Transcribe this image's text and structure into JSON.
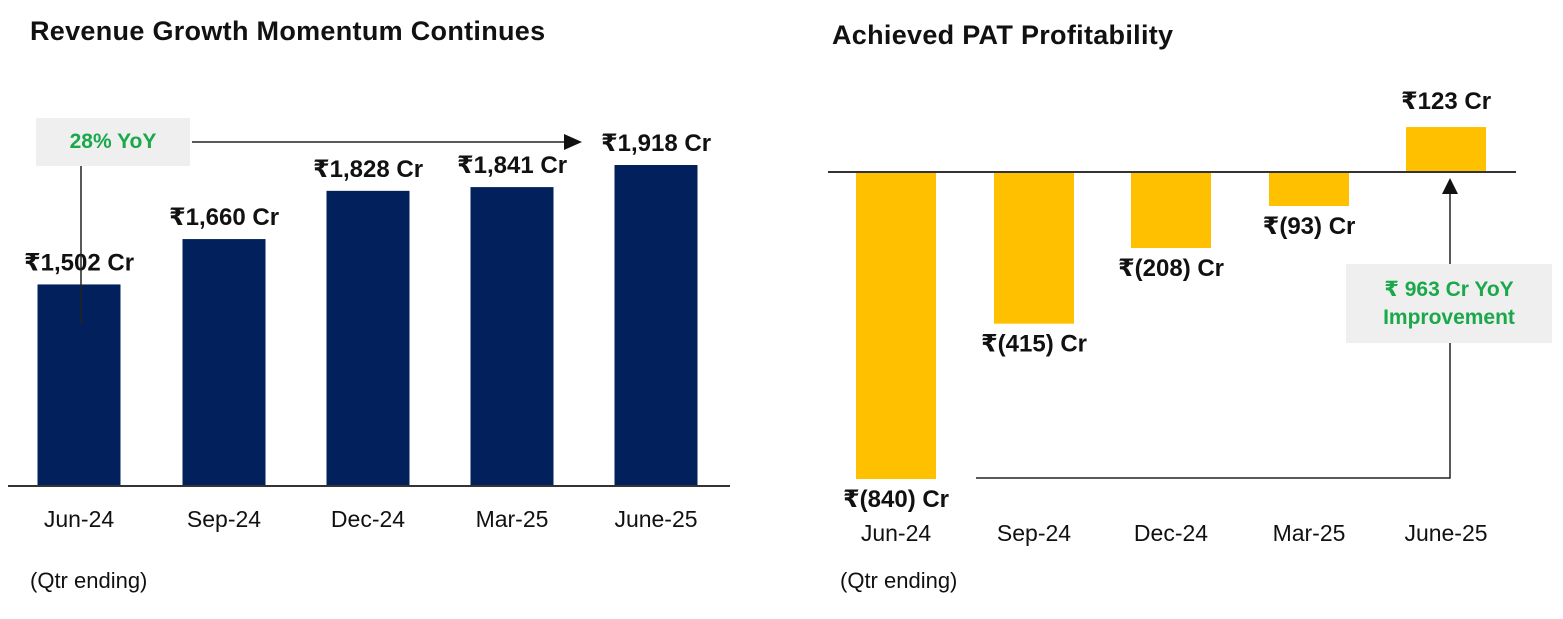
{
  "left_chart": {
    "title": "Revenue Growth Momentum Continues",
    "note": "(Qtr ending)",
    "callout": "28% YoY",
    "bar_color": "#02205b",
    "callout_color": "#1aa84b"
  },
  "right_chart": {
    "title": "Achieved PAT Profitability",
    "note": "(Qtr ending)",
    "callout_line1": "₹ 963 Cr YoY",
    "callout_line2": "Improvement",
    "bar_color": "#ffc000",
    "callout_color": "#1aa84b"
  },
  "chart_data": [
    {
      "type": "bar",
      "title": "Revenue Growth Momentum Continues",
      "categories": [
        "Jun-24",
        "Sep-24",
        "Dec-24",
        "Mar-25",
        "June-25"
      ],
      "values": [
        1502,
        1660,
        1828,
        1841,
        1918
      ],
      "labels": [
        "₹1,502 Cr",
        "₹1,660 Cr",
        "₹1,828 Cr",
        "₹1,841 Cr",
        "₹1,918 Cr"
      ],
      "unit": "₹ Cr",
      "ylim": [
        800,
        1990
      ],
      "grid": false,
      "legend": "none",
      "annotation": "28% YoY"
    },
    {
      "type": "bar",
      "title": "Achieved PAT Profitability",
      "categories": [
        "Jun-24",
        "Sep-24",
        "Dec-24",
        "Mar-25",
        "June-25"
      ],
      "values": [
        -840,
        -415,
        -208,
        -93,
        123
      ],
      "labels": [
        "₹(840) Cr",
        "₹(415) Cr",
        "₹(208) Cr",
        "₹(93) Cr",
        "₹123 Cr"
      ],
      "unit": "₹ Cr",
      "ylim": [
        -840,
        123
      ],
      "grid": false,
      "legend": "none",
      "annotation": "₹ 963 Cr YoY Improvement"
    }
  ]
}
